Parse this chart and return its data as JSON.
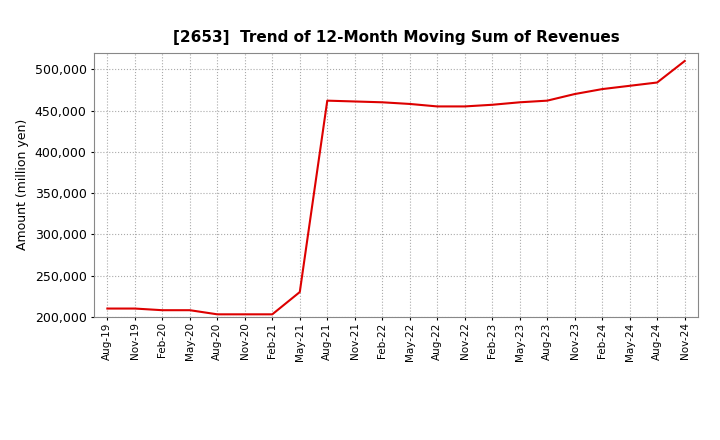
{
  "title": "[2653]  Trend of 12-Month Moving Sum of Revenues",
  "ylabel": "Amount (million yen)",
  "line_color": "#dd0000",
  "background_color": "#ffffff",
  "plot_bg_color": "#ffffff",
  "grid_color": "#aaaaaa",
  "ylim": [
    200000,
    520000
  ],
  "yticks": [
    200000,
    250000,
    300000,
    350000,
    400000,
    450000,
    500000
  ],
  "values": [
    210000,
    210000,
    208000,
    208000,
    203000,
    203000,
    203000,
    230000,
    462000,
    461000,
    460000,
    458000,
    455000,
    455000,
    457000,
    460000,
    462000,
    470000,
    476000,
    480000,
    484000,
    510000
  ],
  "xtick_labels": [
    "Aug-19",
    "Nov-19",
    "Feb-20",
    "May-20",
    "Aug-20",
    "Nov-20",
    "Feb-21",
    "May-21",
    "Aug-21",
    "Nov-21",
    "Feb-22",
    "May-22",
    "Aug-22",
    "Nov-22",
    "Feb-23",
    "May-23",
    "Aug-23",
    "Nov-23",
    "Feb-24",
    "May-24",
    "Aug-24",
    "Nov-24"
  ]
}
